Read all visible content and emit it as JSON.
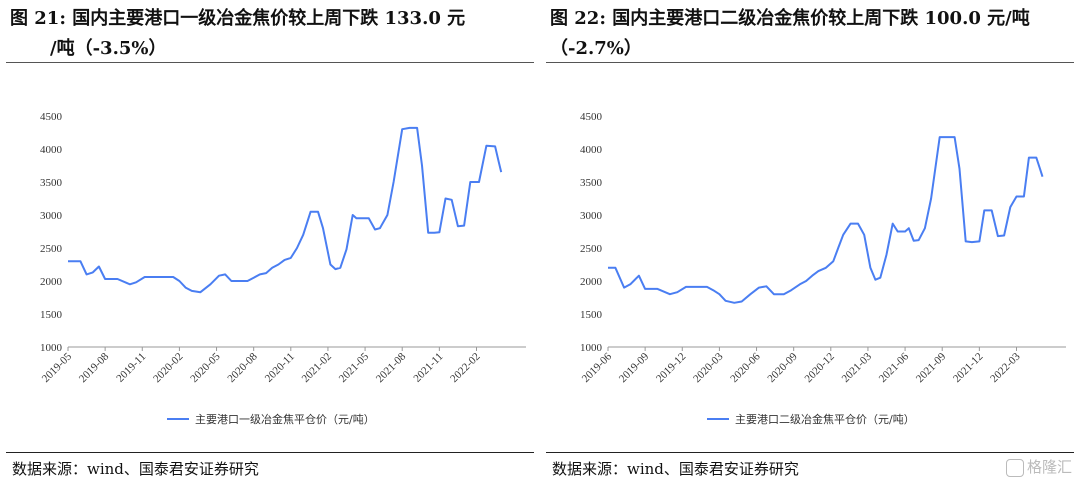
{
  "panels": [
    {
      "title_line1": "图  21: 国内主要港口一级冶金焦价较上周下跌 133.0 元",
      "title_line2": "/吨（-3.5%）",
      "source": "数据来源：wind、国泰君安证券研究"
    },
    {
      "title_line1": "图  22: 国内主要港口二级冶金焦价较上周下跌 100.0 元/吨",
      "title_line2": "（-2.7%）",
      "source": "数据来源：wind、国泰君安证券研究"
    }
  ],
  "watermark": "格隆汇",
  "chart_data": [
    {
      "type": "line",
      "title": "",
      "ylim": [
        1000,
        4500
      ],
      "yticks": [
        1000,
        1500,
        2000,
        2500,
        3000,
        3500,
        4000,
        4500
      ],
      "x_range": [
        0,
        37
      ],
      "xticks": [
        {
          "x": 0,
          "label": "2019-05"
        },
        {
          "x": 3,
          "label": "2019-08"
        },
        {
          "x": 6,
          "label": "2019-11"
        },
        {
          "x": 9,
          "label": "2020-02"
        },
        {
          "x": 12,
          "label": "2020-05"
        },
        {
          "x": 15,
          "label": "2020-08"
        },
        {
          "x": 18,
          "label": "2020-11"
        },
        {
          "x": 21,
          "label": "2021-02"
        },
        {
          "x": 24,
          "label": "2021-05"
        },
        {
          "x": 27,
          "label": "2021-08"
        },
        {
          "x": 30,
          "label": "2021-11"
        },
        {
          "x": 33,
          "label": "2022-02"
        }
      ],
      "series": [
        {
          "name": "主要港口一级冶金焦平仓价（元/吨）",
          "color": "#4a7ef2",
          "points": [
            [
              0,
              2300
            ],
            [
              1.0,
              2300
            ],
            [
              1.5,
              2100
            ],
            [
              2.0,
              2130
            ],
            [
              2.5,
              2220
            ],
            [
              3.0,
              2030
            ],
            [
              4.0,
              2030
            ],
            [
              5.0,
              1950
            ],
            [
              5.5,
              1980
            ],
            [
              6.2,
              2060
            ],
            [
              7.0,
              2060
            ],
            [
              8.0,
              2060
            ],
            [
              8.5,
              2060
            ],
            [
              9.0,
              2000
            ],
            [
              9.5,
              1900
            ],
            [
              10.0,
              1850
            ],
            [
              10.7,
              1830
            ],
            [
              11.5,
              1950
            ],
            [
              12.2,
              2080
            ],
            [
              12.7,
              2100
            ],
            [
              13.2,
              2000
            ],
            [
              14.0,
              2000
            ],
            [
              14.5,
              2000
            ],
            [
              15.0,
              2050
            ],
            [
              15.5,
              2100
            ],
            [
              16.0,
              2120
            ],
            [
              16.5,
              2200
            ],
            [
              17.0,
              2250
            ],
            [
              17.5,
              2320
            ],
            [
              18.0,
              2350
            ],
            [
              18.5,
              2500
            ],
            [
              19.0,
              2700
            ],
            [
              19.6,
              3050
            ],
            [
              20.2,
              3050
            ],
            [
              20.6,
              2800
            ],
            [
              21.2,
              2250
            ],
            [
              21.6,
              2180
            ],
            [
              22.0,
              2200
            ],
            [
              22.5,
              2480
            ],
            [
              23.0,
              3000
            ],
            [
              23.3,
              2950
            ],
            [
              23.8,
              2950
            ],
            [
              24.3,
              2950
            ],
            [
              24.8,
              2780
            ],
            [
              25.2,
              2800
            ],
            [
              25.8,
              3000
            ],
            [
              26.3,
              3500
            ],
            [
              27.0,
              4300
            ],
            [
              27.6,
              4320
            ],
            [
              28.2,
              4320
            ],
            [
              28.6,
              3750
            ],
            [
              29.1,
              2730
            ],
            [
              29.6,
              2730
            ],
            [
              30.0,
              2740
            ],
            [
              30.5,
              3250
            ],
            [
              31.0,
              3230
            ],
            [
              31.5,
              2830
            ],
            [
              32.0,
              2840
            ],
            [
              32.5,
              3500
            ],
            [
              33.2,
              3500
            ],
            [
              33.8,
              4050
            ],
            [
              34.5,
              4040
            ],
            [
              34.8,
              3800
            ],
            [
              35.0,
              3650
            ]
          ]
        }
      ]
    },
    {
      "type": "line",
      "title": "",
      "ylim": [
        1000,
        4500
      ],
      "yticks": [
        1000,
        1500,
        2000,
        2500,
        3000,
        3500,
        4000,
        4500
      ],
      "x_range": [
        0,
        37
      ],
      "xticks": [
        {
          "x": 0,
          "label": "2019-06"
        },
        {
          "x": 3,
          "label": "2019-09"
        },
        {
          "x": 6,
          "label": "2019-12"
        },
        {
          "x": 9,
          "label": "2020-03"
        },
        {
          "x": 12,
          "label": "2020-06"
        },
        {
          "x": 15,
          "label": "2020-09"
        },
        {
          "x": 18,
          "label": "2020-12"
        },
        {
          "x": 21,
          "label": "2021-03"
        },
        {
          "x": 24,
          "label": "2021-06"
        },
        {
          "x": 27,
          "label": "2021-09"
        },
        {
          "x": 30,
          "label": "2021-12"
        },
        {
          "x": 33,
          "label": "2022-03"
        }
      ],
      "series": [
        {
          "name": "主要港口二级冶金焦平仓价（元/吨）",
          "color": "#4a7ef2",
          "points": [
            [
              0,
              2200
            ],
            [
              0.6,
              2200
            ],
            [
              1.3,
              1900
            ],
            [
              1.8,
              1950
            ],
            [
              2.5,
              2080
            ],
            [
              3.0,
              1880
            ],
            [
              4.0,
              1880
            ],
            [
              5.0,
              1800
            ],
            [
              5.6,
              1830
            ],
            [
              6.3,
              1910
            ],
            [
              7.2,
              1910
            ],
            [
              8.0,
              1910
            ],
            [
              8.5,
              1860
            ],
            [
              9.0,
              1800
            ],
            [
              9.5,
              1700
            ],
            [
              10.2,
              1670
            ],
            [
              10.8,
              1690
            ],
            [
              11.5,
              1800
            ],
            [
              12.2,
              1900
            ],
            [
              12.8,
              1920
            ],
            [
              13.4,
              1800
            ],
            [
              14.2,
              1800
            ],
            [
              14.8,
              1860
            ],
            [
              15.5,
              1950
            ],
            [
              16.0,
              2000
            ],
            [
              16.5,
              2080
            ],
            [
              17.0,
              2150
            ],
            [
              17.6,
              2200
            ],
            [
              18.2,
              2300
            ],
            [
              18.6,
              2500
            ],
            [
              19.0,
              2700
            ],
            [
              19.6,
              2870
            ],
            [
              20.2,
              2870
            ],
            [
              20.7,
              2700
            ],
            [
              21.2,
              2200
            ],
            [
              21.6,
              2020
            ],
            [
              22.0,
              2050
            ],
            [
              22.5,
              2400
            ],
            [
              23.0,
              2870
            ],
            [
              23.4,
              2750
            ],
            [
              24.0,
              2750
            ],
            [
              24.3,
              2800
            ],
            [
              24.7,
              2610
            ],
            [
              25.1,
              2620
            ],
            [
              25.6,
              2800
            ],
            [
              26.1,
              3250
            ],
            [
              26.8,
              4180
            ],
            [
              27.4,
              4180
            ],
            [
              28.0,
              4180
            ],
            [
              28.4,
              3700
            ],
            [
              28.9,
              2600
            ],
            [
              29.4,
              2590
            ],
            [
              30.0,
              2600
            ],
            [
              30.4,
              3070
            ],
            [
              31.0,
              3070
            ],
            [
              31.5,
              2680
            ],
            [
              32.0,
              2690
            ],
            [
              32.5,
              3120
            ],
            [
              33.0,
              3280
            ],
            [
              33.6,
              3280
            ],
            [
              34.0,
              3870
            ],
            [
              34.6,
              3870
            ],
            [
              34.9,
              3700
            ],
            [
              35.1,
              3580
            ]
          ]
        }
      ]
    }
  ]
}
